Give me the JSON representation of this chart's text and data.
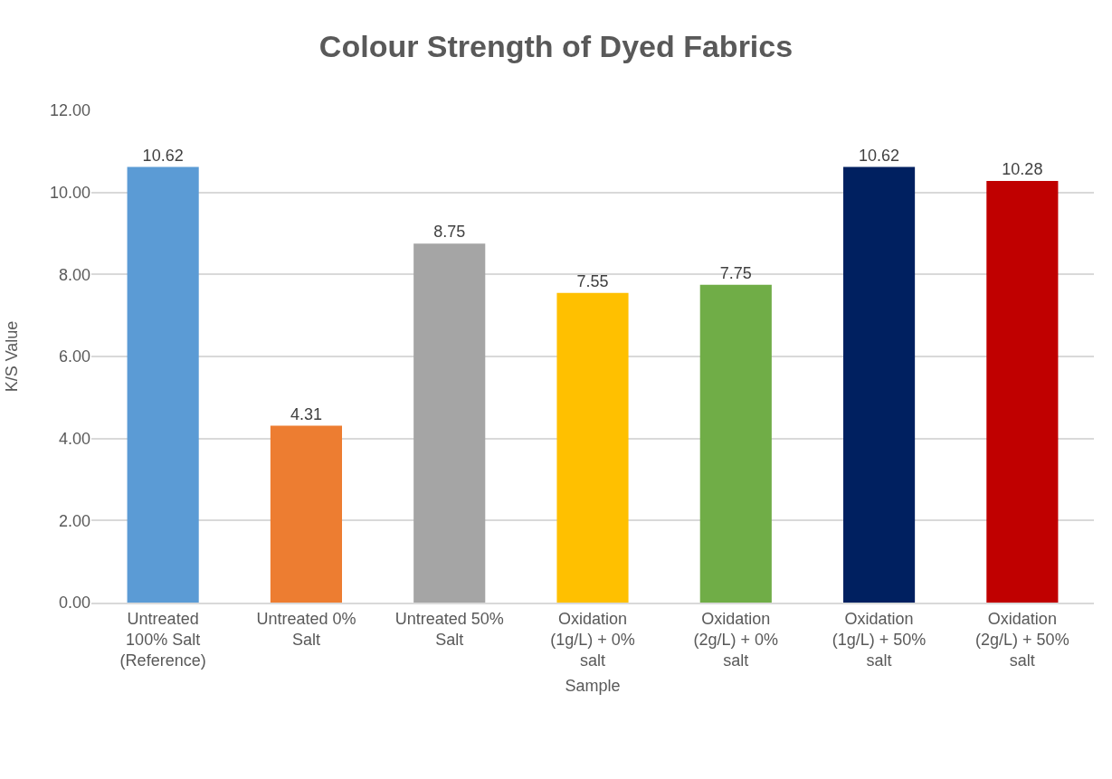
{
  "chart_data": {
    "type": "bar",
    "title": "Colour Strength of Dyed Fabrics",
    "xlabel": "Sample",
    "ylabel": "K/S Value",
    "categories": [
      "Untreated 100% Salt (Reference)",
      "Untreated 0% Salt",
      "Untreated 50% Salt",
      "Oxidation (1g/L) + 0% salt",
      "Oxidation (2g/L) + 0% salt",
      "Oxidation (1g/L) + 50% salt",
      "Oxidation (2g/L) + 50% salt"
    ],
    "values": [
      10.62,
      4.31,
      8.75,
      7.55,
      7.75,
      10.62,
      10.28
    ],
    "colors": [
      "#5b9bd5",
      "#ed7d31",
      "#a5a5a5",
      "#ffc000",
      "#70ad47",
      "#002060",
      "#c00000"
    ],
    "ylim": [
      0,
      12
    ],
    "yticks": [
      {
        "value": 0,
        "label": "0.00"
      },
      {
        "value": 2,
        "label": "2.00"
      },
      {
        "value": 4,
        "label": "4.00"
      },
      {
        "value": 6,
        "label": "6.00"
      },
      {
        "value": 8,
        "label": "8.00"
      },
      {
        "value": 10,
        "label": "10.00"
      },
      {
        "value": 12,
        "label": "12.00"
      }
    ],
    "grid": "y",
    "data_labels": true
  }
}
